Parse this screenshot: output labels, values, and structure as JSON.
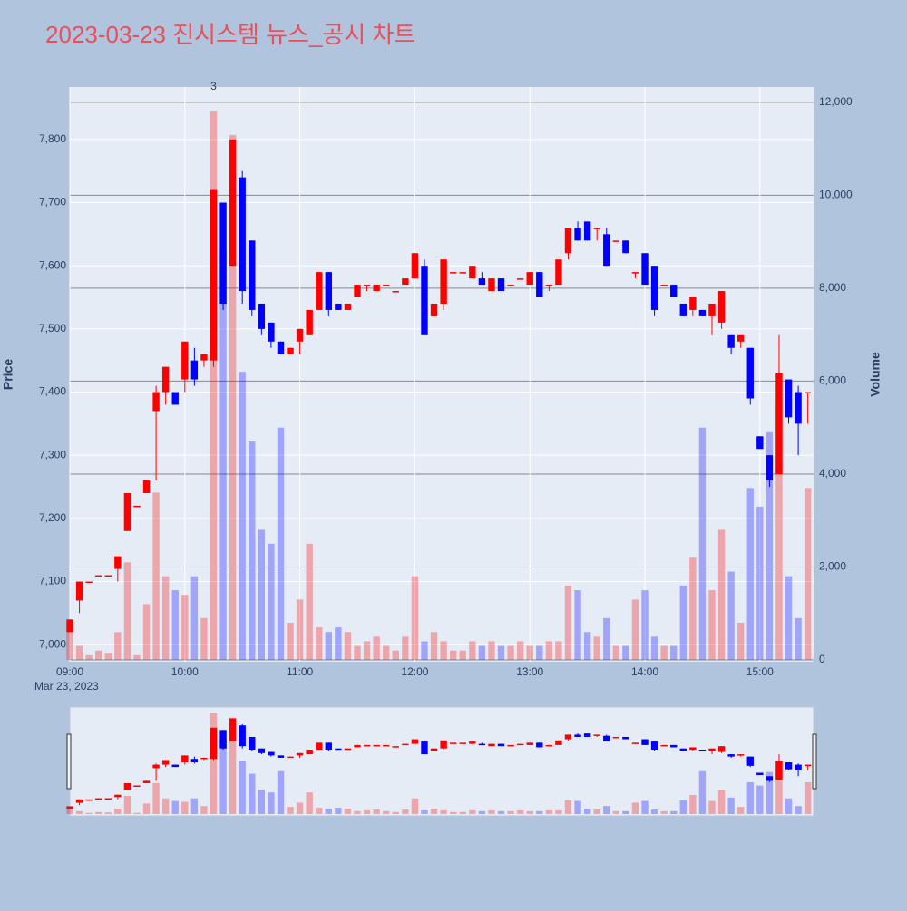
{
  "chart_data": {
    "type": "candlestick",
    "title": "2023-03-23 진시스템 뉴스_공시 차트",
    "y_label": "Price",
    "y2_label": "Volume",
    "x_date_label": "Mar 23, 2023",
    "x": [
      "2023-03-23 09:00",
      "2023-03-23 09:05",
      "2023-03-23 09:10",
      "2023-03-23 09:15",
      "2023-03-23 09:20",
      "2023-03-23 09:25",
      "2023-03-23 09:30",
      "2023-03-23 09:35",
      "2023-03-23 09:40",
      "2023-03-23 09:45",
      "2023-03-23 09:50",
      "2023-03-23 09:55",
      "2023-03-23 10:00",
      "2023-03-23 10:05",
      "2023-03-23 10:10",
      "2023-03-23 10:15",
      "2023-03-23 10:20",
      "2023-03-23 10:25",
      "2023-03-23 10:30",
      "2023-03-23 10:35",
      "2023-03-23 10:40",
      "2023-03-23 10:45",
      "2023-03-23 10:50",
      "2023-03-23 10:55",
      "2023-03-23 11:00",
      "2023-03-23 11:05",
      "2023-03-23 11:10",
      "2023-03-23 11:15",
      "2023-03-23 11:20",
      "2023-03-23 11:25",
      "2023-03-23 11:30",
      "2023-03-23 11:35",
      "2023-03-23 11:40",
      "2023-03-23 11:45",
      "2023-03-23 11:50",
      "2023-03-23 11:55",
      "2023-03-23 12:00",
      "2023-03-23 12:05",
      "2023-03-23 12:10",
      "2023-03-23 12:15",
      "2023-03-23 12:20",
      "2023-03-23 12:25",
      "2023-03-23 12:30",
      "2023-03-23 12:35",
      "2023-03-23 12:40",
      "2023-03-23 12:45",
      "2023-03-23 12:50",
      "2023-03-23 12:55",
      "2023-03-23 13:00",
      "2023-03-23 13:05",
      "2023-03-23 13:10",
      "2023-03-23 13:15",
      "2023-03-23 13:20",
      "2023-03-23 13:25",
      "2023-03-23 13:30",
      "2023-03-23 13:35",
      "2023-03-23 13:40",
      "2023-03-23 13:45",
      "2023-03-23 13:50",
      "2023-03-23 13:55",
      "2023-03-23 14:00",
      "2023-03-23 14:05",
      "2023-03-23 14:10",
      "2023-03-23 14:15",
      "2023-03-23 14:20",
      "2023-03-23 14:25",
      "2023-03-23 14:30",
      "2023-03-23 14:35",
      "2023-03-23 14:40",
      "2023-03-23 14:45",
      "2023-03-23 14:50",
      "2023-03-23 14:55",
      "2023-03-23 15:00",
      "2023-03-23 15:05",
      "2023-03-23 15:10",
      "2023-03-23 15:15",
      "2023-03-23 15:20",
      "2023-03-23 15:25"
    ],
    "open": [
      7020,
      7070,
      7100,
      7110,
      7110,
      7120,
      7180,
      7220,
      7240,
      7370,
      7400,
      7400,
      7420,
      7450,
      7450,
      7450,
      7700,
      7600,
      7740,
      7640,
      7540,
      7510,
      7480,
      7460,
      7480,
      7490,
      7530,
      7590,
      7540,
      7530,
      7550,
      7570,
      7560,
      7570,
      7560,
      7570,
      7580,
      7600,
      7520,
      7540,
      7590,
      7590,
      7580,
      7580,
      7560,
      7580,
      7570,
      7580,
      7570,
      7590,
      7570,
      7570,
      7620,
      7660,
      7670,
      7660,
      7650,
      7640,
      7640,
      7590,
      7620,
      7600,
      7570,
      7570,
      7540,
      7530,
      7530,
      7520,
      7510,
      7490,
      7480,
      7470,
      7330,
      7300,
      7270,
      7420,
      7400,
      7400
    ],
    "high": [
      7040,
      7100,
      7100,
      7110,
      7110,
      7140,
      7240,
      7220,
      7260,
      7410,
      7440,
      7400,
      7480,
      7470,
      7460,
      7720,
      7700,
      7800,
      7750,
      7640,
      7540,
      7510,
      7480,
      7470,
      7500,
      7530,
      7590,
      7590,
      7540,
      7540,
      7570,
      7570,
      7570,
      7570,
      7560,
      7580,
      7620,
      7610,
      7540,
      7610,
      7590,
      7590,
      7600,
      7590,
      7580,
      7580,
      7570,
      7580,
      7590,
      7590,
      7570,
      7610,
      7660,
      7670,
      7670,
      7660,
      7660,
      7640,
      7640,
      7590,
      7620,
      7600,
      7570,
      7570,
      7540,
      7550,
      7530,
      7540,
      7560,
      7490,
      7490,
      7470,
      7330,
      7300,
      7490,
      7420,
      7410,
      7400
    ],
    "low": [
      7020,
      7050,
      7100,
      7110,
      7110,
      7100,
      7180,
      7220,
      7240,
      7260,
      7380,
      7380,
      7400,
      7410,
      7440,
      7440,
      7530,
      7600,
      7540,
      7520,
      7490,
      7470,
      7460,
      7460,
      7460,
      7490,
      7530,
      7520,
      7530,
      7530,
      7550,
      7560,
      7560,
      7570,
      7560,
      7570,
      7580,
      7490,
      7520,
      7530,
      7590,
      7590,
      7580,
      7570,
      7560,
      7560,
      7570,
      7580,
      7570,
      7550,
      7560,
      7570,
      7610,
      7640,
      7640,
      7640,
      7600,
      7640,
      7620,
      7580,
      7570,
      7520,
      7570,
      7550,
      7520,
      7520,
      7520,
      7490,
      7500,
      7460,
      7470,
      7380,
      7310,
      7250,
      7270,
      7350,
      7300,
      7350
    ],
    "close": [
      7040,
      7100,
      7100,
      7110,
      7110,
      7140,
      7240,
      7220,
      7260,
      7400,
      7440,
      7380,
      7480,
      7420,
      7460,
      7720,
      7540,
      7800,
      7560,
      7530,
      7500,
      7480,
      7460,
      7470,
      7500,
      7530,
      7590,
      7530,
      7530,
      7540,
      7570,
      7570,
      7570,
      7570,
      7560,
      7580,
      7620,
      7490,
      7540,
      7610,
      7590,
      7590,
      7600,
      7570,
      7580,
      7560,
      7570,
      7580,
      7590,
      7550,
      7570,
      7610,
      7660,
      7640,
      7640,
      7660,
      7600,
      7640,
      7620,
      7590,
      7570,
      7530,
      7570,
      7550,
      7520,
      7550,
      7520,
      7540,
      7560,
      7470,
      7490,
      7390,
      7310,
      7260,
      7430,
      7360,
      7350,
      7400
    ],
    "volume": [
      600,
      300,
      100,
      200,
      150,
      600,
      2100,
      100,
      1200,
      3600,
      1800,
      1500,
      1400,
      1800,
      900,
      11800,
      8800,
      11300,
      6200,
      4700,
      2800,
      2500,
      5000,
      800,
      1300,
      2500,
      700,
      600,
      700,
      600,
      300,
      400,
      500,
      300,
      200,
      500,
      1800,
      400,
      600,
      400,
      200,
      200,
      400,
      300,
      400,
      300,
      300,
      400,
      300,
      300,
      400,
      400,
      1600,
      1500,
      600,
      500,
      900,
      300,
      300,
      1300,
      1500,
      500,
      300,
      300,
      1600,
      2200,
      5000,
      1500,
      2800,
      1900,
      800,
      3700,
      3300,
      4900,
      5500,
      1800,
      900,
      3700
    ],
    "up_color": "#ff0000",
    "down_color": "#0000ff",
    "annotations": [
      {
        "x": "2023-03-23 10:15",
        "text": "3"
      }
    ],
    "xlim": [
      "2023-03-23 09:00",
      "2023-03-23 15:28"
    ],
    "xticks": [
      {
        "value": "2023-03-23 09:00",
        "label": "09:00"
      },
      {
        "value": "2023-03-23 10:00",
        "label": "10:00"
      },
      {
        "value": "2023-03-23 11:00",
        "label": "11:00"
      },
      {
        "value": "2023-03-23 12:00",
        "label": "12:00"
      },
      {
        "value": "2023-03-23 13:00",
        "label": "13:00"
      },
      {
        "value": "2023-03-23 14:00",
        "label": "14:00"
      },
      {
        "value": "2023-03-23 15:00",
        "label": "15:00"
      }
    ],
    "ylim": [
      6973,
      7883
    ],
    "yticks": [
      {
        "value": 7000,
        "label": "7,000"
      },
      {
        "value": 7100,
        "label": "7,100"
      },
      {
        "value": 7200,
        "label": "7,200"
      },
      {
        "value": 7300,
        "label": "7,300"
      },
      {
        "value": 7400,
        "label": "7,400"
      },
      {
        "value": 7500,
        "label": "7,500"
      },
      {
        "value": 7600,
        "label": "7,600"
      },
      {
        "value": 7700,
        "label": "7,700"
      },
      {
        "value": 7800,
        "label": "7,800"
      }
    ],
    "y2lim": [
      -40,
      12330
    ],
    "y2ticks": [
      0,
      {
        "value": 2000,
        "label": "2,000"
      },
      {
        "value": 4000,
        "label": "4,000"
      },
      {
        "value": 6000,
        "label": "6,000"
      },
      {
        "value": 8000,
        "label": "8,000"
      },
      {
        "value": 10000,
        "label": "10,000"
      },
      {
        "value": 12000,
        "label": "12,000"
      }
    ],
    "grid": true,
    "rangeslider": true
  }
}
